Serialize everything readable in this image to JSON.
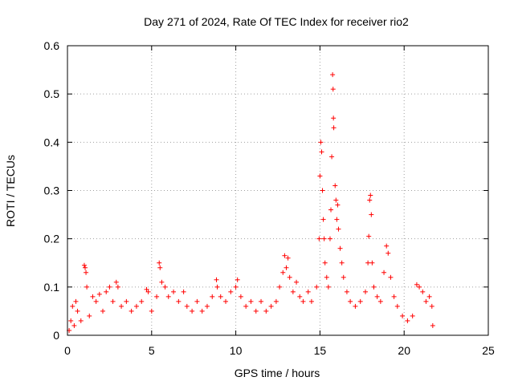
{
  "chart_data": {
    "type": "scatter",
    "title": "Day 271 of 2024, Rate Of TEC Index for receiver rio2",
    "xlabel": "GPS time / hours",
    "ylabel": "ROTI / TECUs",
    "xlim": [
      0,
      25
    ],
    "ylim": [
      0,
      0.6
    ],
    "x_ticks": [
      0,
      5,
      10,
      15,
      20,
      25
    ],
    "x_tick_labels": [
      "0",
      "5",
      "10",
      "15",
      "20",
      "25"
    ],
    "y_ticks": [
      0,
      0.1,
      0.2,
      0.3,
      0.4,
      0.5,
      0.6
    ],
    "y_tick_labels": [
      "0",
      "0.1",
      "0.2",
      "0.3",
      "0.4",
      "0.5",
      "0.6"
    ],
    "grid": true,
    "marker": "plus",
    "series_color": "#ff0000",
    "series": [
      {
        "name": "ROTI",
        "points": [
          [
            0.1,
            0.01
          ],
          [
            0.2,
            0.03
          ],
          [
            0.3,
            0.06
          ],
          [
            0.4,
            0.02
          ],
          [
            0.5,
            0.07
          ],
          [
            0.6,
            0.05
          ],
          [
            0.8,
            0.03
          ],
          [
            1.0,
            0.145
          ],
          [
            1.05,
            0.14
          ],
          [
            1.1,
            0.13
          ],
          [
            1.15,
            0.1
          ],
          [
            1.3,
            0.04
          ],
          [
            1.5,
            0.08
          ],
          [
            1.7,
            0.07
          ],
          [
            1.9,
            0.085
          ],
          [
            2.1,
            0.05
          ],
          [
            2.3,
            0.09
          ],
          [
            2.5,
            0.1
          ],
          [
            2.7,
            0.07
          ],
          [
            2.9,
            0.11
          ],
          [
            3.0,
            0.1
          ],
          [
            3.2,
            0.06
          ],
          [
            3.5,
            0.07
          ],
          [
            3.8,
            0.05
          ],
          [
            4.1,
            0.06
          ],
          [
            4.4,
            0.07
          ],
          [
            4.7,
            0.095
          ],
          [
            4.8,
            0.09
          ],
          [
            5.0,
            0.05
          ],
          [
            5.3,
            0.08
          ],
          [
            5.45,
            0.15
          ],
          [
            5.5,
            0.14
          ],
          [
            5.6,
            0.11
          ],
          [
            5.8,
            0.1
          ],
          [
            6.0,
            0.08
          ],
          [
            6.3,
            0.09
          ],
          [
            6.6,
            0.07
          ],
          [
            6.9,
            0.09
          ],
          [
            7.1,
            0.06
          ],
          [
            7.4,
            0.05
          ],
          [
            7.7,
            0.07
          ],
          [
            8.0,
            0.05
          ],
          [
            8.3,
            0.06
          ],
          [
            8.6,
            0.08
          ],
          [
            8.85,
            0.115
          ],
          [
            8.9,
            0.1
          ],
          [
            9.1,
            0.08
          ],
          [
            9.4,
            0.07
          ],
          [
            9.7,
            0.09
          ],
          [
            10.0,
            0.1
          ],
          [
            10.1,
            0.115
          ],
          [
            10.3,
            0.08
          ],
          [
            10.6,
            0.06
          ],
          [
            10.9,
            0.07
          ],
          [
            11.2,
            0.05
          ],
          [
            11.5,
            0.07
          ],
          [
            11.8,
            0.05
          ],
          [
            12.1,
            0.06
          ],
          [
            12.4,
            0.07
          ],
          [
            12.6,
            0.1
          ],
          [
            12.8,
            0.13
          ],
          [
            12.9,
            0.165
          ],
          [
            13.0,
            0.14
          ],
          [
            13.1,
            0.16
          ],
          [
            13.2,
            0.12
          ],
          [
            13.4,
            0.09
          ],
          [
            13.6,
            0.11
          ],
          [
            13.8,
            0.08
          ],
          [
            14.0,
            0.07
          ],
          [
            14.3,
            0.09
          ],
          [
            14.5,
            0.07
          ],
          [
            14.8,
            0.1
          ],
          [
            14.95,
            0.2
          ],
          [
            15.0,
            0.33
          ],
          [
            15.05,
            0.4
          ],
          [
            15.1,
            0.38
          ],
          [
            15.15,
            0.3
          ],
          [
            15.2,
            0.24
          ],
          [
            15.25,
            0.2
          ],
          [
            15.3,
            0.15
          ],
          [
            15.4,
            0.12
          ],
          [
            15.5,
            0.1
          ],
          [
            15.6,
            0.2
          ],
          [
            15.65,
            0.26
          ],
          [
            15.7,
            0.37
          ],
          [
            15.75,
            0.54
          ],
          [
            15.78,
            0.51
          ],
          [
            15.8,
            0.45
          ],
          [
            15.82,
            0.43
          ],
          [
            15.9,
            0.31
          ],
          [
            15.95,
            0.28
          ],
          [
            16.0,
            0.24
          ],
          [
            16.05,
            0.27
          ],
          [
            16.1,
            0.22
          ],
          [
            16.2,
            0.18
          ],
          [
            16.3,
            0.15
          ],
          [
            16.4,
            0.12
          ],
          [
            16.6,
            0.09
          ],
          [
            16.8,
            0.07
          ],
          [
            17.1,
            0.06
          ],
          [
            17.4,
            0.07
          ],
          [
            17.7,
            0.09
          ],
          [
            17.85,
            0.15
          ],
          [
            17.9,
            0.205
          ],
          [
            17.95,
            0.28
          ],
          [
            18.0,
            0.29
          ],
          [
            18.05,
            0.25
          ],
          [
            18.1,
            0.15
          ],
          [
            18.2,
            0.1
          ],
          [
            18.4,
            0.08
          ],
          [
            18.6,
            0.07
          ],
          [
            18.8,
            0.13
          ],
          [
            18.95,
            0.185
          ],
          [
            19.05,
            0.17
          ],
          [
            19.2,
            0.12
          ],
          [
            19.4,
            0.08
          ],
          [
            19.6,
            0.06
          ],
          [
            19.9,
            0.04
          ],
          [
            20.2,
            0.03
          ],
          [
            20.5,
            0.04
          ],
          [
            20.75,
            0.105
          ],
          [
            20.9,
            0.1
          ],
          [
            21.1,
            0.09
          ],
          [
            21.3,
            0.07
          ],
          [
            21.5,
            0.08
          ],
          [
            21.65,
            0.06
          ],
          [
            21.7,
            0.02
          ]
        ]
      }
    ]
  }
}
